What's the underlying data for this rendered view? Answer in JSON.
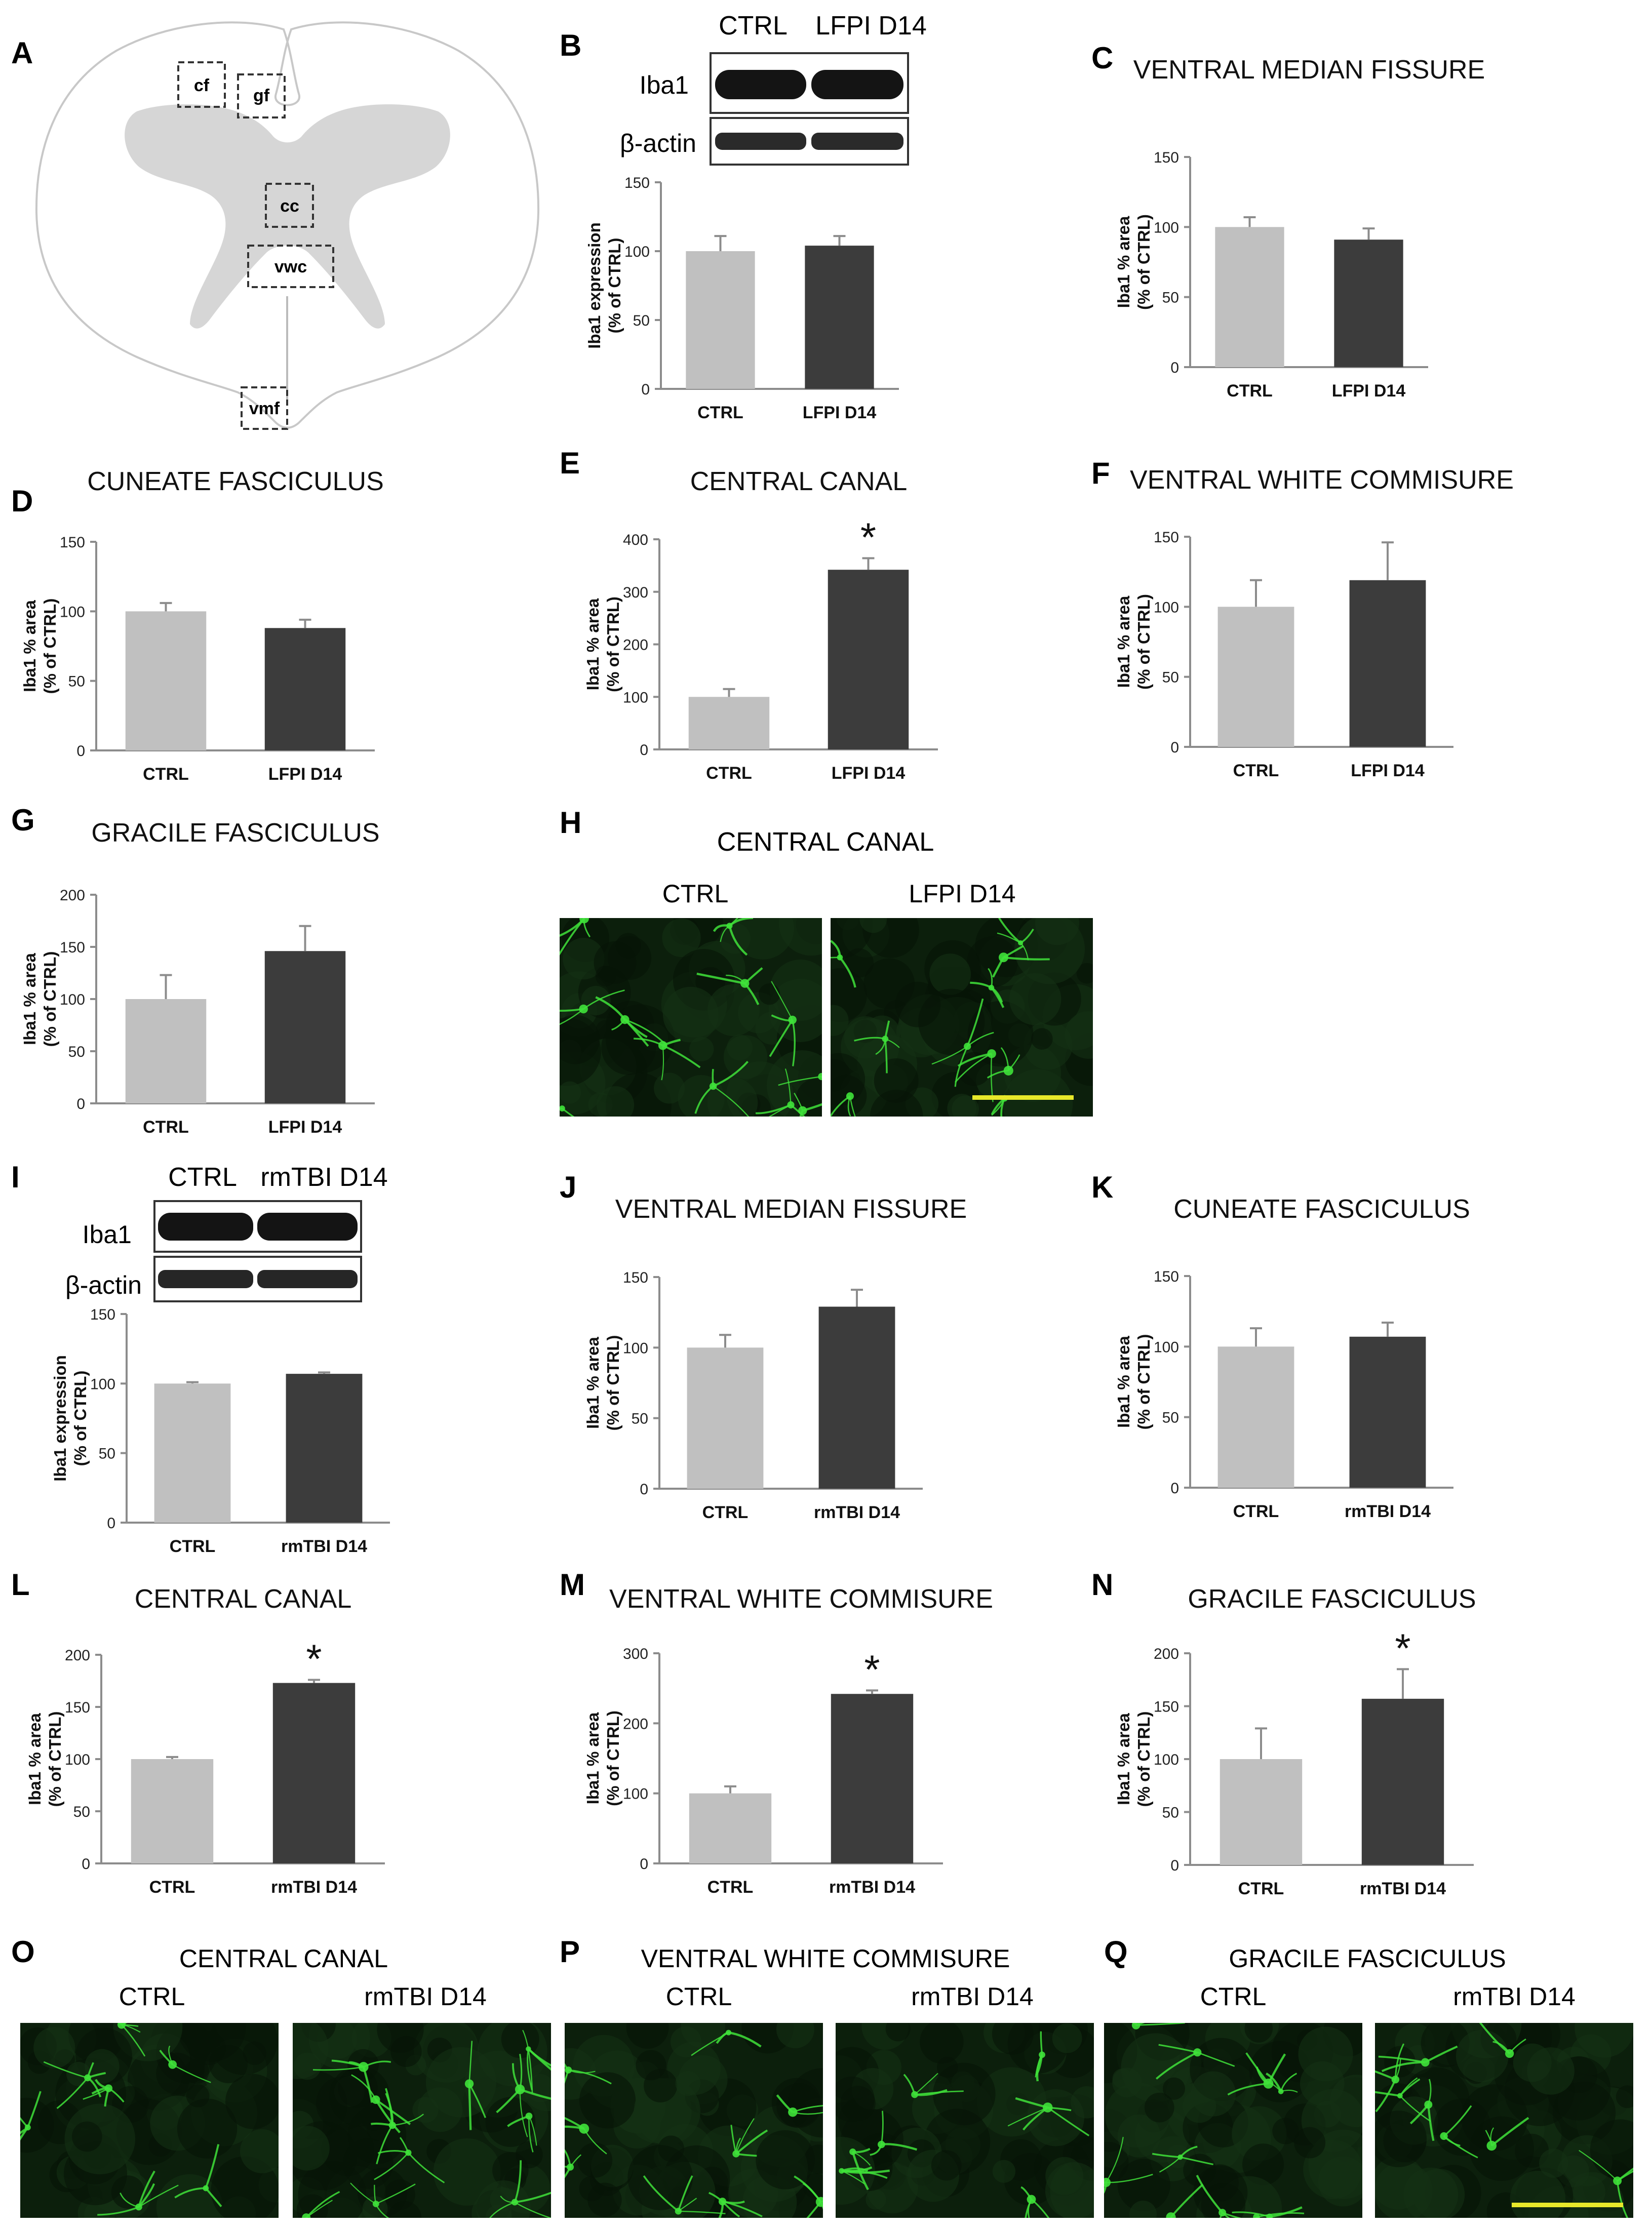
{
  "colors": {
    "ctrl_bar": "#c0c0c0",
    "injury_bar": "#3c3c3c",
    "axis": "#8c8c8c",
    "scale_bar": "#e8e82a",
    "fluor": "#3fe23a"
  },
  "figure": {
    "panel_letters": [
      "A",
      "B",
      "C",
      "D",
      "E",
      "F",
      "G",
      "H",
      "I",
      "J",
      "K",
      "L",
      "M",
      "N",
      "O",
      "P",
      "Q"
    ],
    "star": "*"
  },
  "schematic": {
    "regions": [
      "cf",
      "gf",
      "cc",
      "vwc",
      "vmf"
    ]
  },
  "blot_B": {
    "lanes": [
      "CTRL",
      "LFPI D14"
    ],
    "proteins": [
      "Iba1",
      "β-actin"
    ]
  },
  "blot_I": {
    "lanes": [
      "CTRL",
      "rmTBI D14"
    ],
    "proteins": [
      "Iba1",
      "β-actin"
    ]
  },
  "micro_H": {
    "title": "CENTRAL CANAL",
    "labels": [
      "CTRL",
      "LFPI D14"
    ]
  },
  "micro_row": [
    {
      "title": "CENTRAL CANAL",
      "labels": [
        "CTRL",
        "rmTBI D14"
      ]
    },
    {
      "title": "VENTRAL WHITE COMMISURE",
      "labels": [
        "CTRL",
        "rmTBI D14"
      ]
    },
    {
      "title": "GRACILE FASCICULUS",
      "labels": [
        "CTRL",
        "rmTBI D14"
      ]
    }
  ],
  "chart_data": [
    {
      "panel": "B",
      "type": "bar",
      "title": "",
      "ylabel": [
        "Iba1 expression",
        "(% of CTRL)"
      ],
      "categories": [
        "CTRL",
        "LFPI D14"
      ],
      "values": [
        100,
        104
      ],
      "errors": [
        11,
        7
      ],
      "ylim": [
        0,
        150
      ],
      "ticks": [
        0,
        50,
        100,
        150
      ],
      "significant": [
        false,
        false
      ]
    },
    {
      "panel": "C",
      "type": "bar",
      "title": "VENTRAL MEDIAN FISSURE",
      "ylabel": [
        "Iba1 % area",
        "(% of CTRL)"
      ],
      "categories": [
        "CTRL",
        "LFPI D14"
      ],
      "values": [
        100,
        91
      ],
      "errors": [
        7,
        8
      ],
      "ylim": [
        0,
        150
      ],
      "ticks": [
        0,
        50,
        100,
        150
      ],
      "significant": [
        false,
        false
      ]
    },
    {
      "panel": "D",
      "type": "bar",
      "title": "CUNEATE FASCICULUS",
      "ylabel": [
        "Iba1 % area",
        "(% of CTRL)"
      ],
      "categories": [
        "CTRL",
        "LFPI D14"
      ],
      "values": [
        100,
        88
      ],
      "errors": [
        6,
        6
      ],
      "ylim": [
        0,
        150
      ],
      "ticks": [
        0,
        50,
        100,
        150
      ],
      "significant": [
        false,
        false
      ]
    },
    {
      "panel": "E",
      "type": "bar",
      "title": "CENTRAL CANAL",
      "ylabel": [
        "Iba1 % area",
        "(% of CTRL)"
      ],
      "categories": [
        "CTRL",
        "LFPI D14"
      ],
      "values": [
        100,
        342
      ],
      "errors": [
        15,
        22
      ],
      "ylim": [
        0,
        400
      ],
      "ticks": [
        0,
        100,
        200,
        300,
        400
      ],
      "significant": [
        false,
        true
      ]
    },
    {
      "panel": "F",
      "type": "bar",
      "title": "VENTRAL WHITE COMMISURE",
      "ylabel": [
        "Iba1 % area",
        "(% of CTRL)"
      ],
      "categories": [
        "CTRL",
        "LFPI D14"
      ],
      "values": [
        100,
        119
      ],
      "errors": [
        19,
        27
      ],
      "ylim": [
        0,
        150
      ],
      "ticks": [
        0,
        50,
        100,
        150
      ],
      "significant": [
        false,
        false
      ]
    },
    {
      "panel": "G",
      "type": "bar",
      "title": "GRACILE FASCICULUS",
      "ylabel": [
        "Iba1 % area",
        "(% of CTRL)"
      ],
      "categories": [
        "CTRL",
        "LFPI D14"
      ],
      "values": [
        100,
        146
      ],
      "errors": [
        23,
        24
      ],
      "ylim": [
        0,
        200
      ],
      "ticks": [
        0,
        50,
        100,
        150,
        200
      ],
      "significant": [
        false,
        false
      ]
    },
    {
      "panel": "I",
      "type": "bar",
      "title": "",
      "ylabel": [
        "Iba1 expression",
        "(% of CTRL)"
      ],
      "categories": [
        "CTRL",
        "rmTBI D14"
      ],
      "values": [
        100,
        107
      ],
      "errors": [
        1,
        1
      ],
      "ylim": [
        0,
        150
      ],
      "ticks": [
        0,
        50,
        100,
        150
      ],
      "significant": [
        false,
        false
      ]
    },
    {
      "panel": "J",
      "type": "bar",
      "title": "VENTRAL MEDIAN FISSURE",
      "ylabel": [
        "Iba1 % area",
        "(% of CTRL)"
      ],
      "categories": [
        "CTRL",
        "rmTBI D14"
      ],
      "values": [
        100,
        129
      ],
      "errors": [
        9,
        12
      ],
      "ylim": [
        0,
        150
      ],
      "ticks": [
        0,
        50,
        100,
        150
      ],
      "significant": [
        false,
        false
      ]
    },
    {
      "panel": "K",
      "type": "bar",
      "title": "CUNEATE FASCICULUS",
      "ylabel": [
        "Iba1 % area",
        "(% of CTRL)"
      ],
      "categories": [
        "CTRL",
        "rmTBI D14"
      ],
      "values": [
        100,
        107
      ],
      "errors": [
        13,
        10
      ],
      "ylim": [
        0,
        150
      ],
      "ticks": [
        0,
        50,
        100,
        150
      ],
      "significant": [
        false,
        false
      ]
    },
    {
      "panel": "L",
      "type": "bar",
      "title": "CENTRAL CANAL",
      "ylabel": [
        "Iba1 % area",
        "(% of CTRL)"
      ],
      "categories": [
        "CTRL",
        "rmTBI D14"
      ],
      "values": [
        100,
        173
      ],
      "errors": [
        2,
        3
      ],
      "ylim": [
        0,
        200
      ],
      "ticks": [
        0,
        50,
        100,
        150,
        200
      ],
      "significant": [
        false,
        true
      ]
    },
    {
      "panel": "M",
      "type": "bar",
      "title": "VENTRAL WHITE COMMISURE",
      "ylabel": [
        "Iba1 % area",
        "(% of CTRL)"
      ],
      "categories": [
        "CTRL",
        "rmTBI D14"
      ],
      "values": [
        100,
        242
      ],
      "errors": [
        10,
        5
      ],
      "ylim": [
        0,
        300
      ],
      "ticks": [
        0,
        100,
        200,
        300
      ],
      "significant": [
        false,
        true
      ]
    },
    {
      "panel": "N",
      "type": "bar",
      "title": "GRACILE FASCICULUS",
      "ylabel": [
        "Iba1 % area",
        "(% of CTRL)"
      ],
      "categories": [
        "CTRL",
        "rmTBI D14"
      ],
      "values": [
        100,
        157
      ],
      "errors": [
        29,
        28
      ],
      "ylim": [
        0,
        200
      ],
      "ticks": [
        0,
        50,
        100,
        150,
        200
      ],
      "significant": [
        false,
        true
      ]
    }
  ]
}
